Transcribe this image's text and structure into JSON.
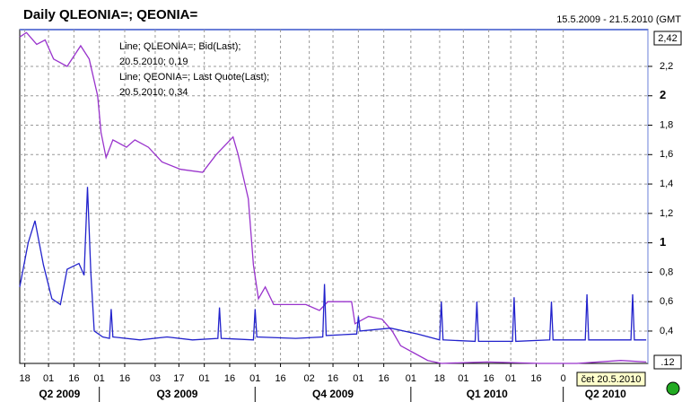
{
  "chart_data": {
    "type": "line",
    "title": "Daily QLEONIA=; QEONIA=",
    "date_range": "15.5.2009 - 21.5.2010 (GMT",
    "cursor_label": "čet 20.5.2010",
    "range_labels": [
      "2,42",
      ".12"
    ],
    "xlim": [
      "2009-05-15",
      "2010-05-21"
    ],
    "ylim": [
      0.18,
      2.45
    ],
    "grid": true,
    "yticks": [
      {
        "value": 0.4,
        "label": "0,4"
      },
      {
        "value": 0.6,
        "label": "0,6"
      },
      {
        "value": 0.8,
        "label": "0,8"
      },
      1,
      {
        "value": 1.2,
        "label": "1,2"
      },
      {
        "value": 1.4,
        "label": "1,4"
      },
      {
        "value": 1.6,
        "label": "1,6"
      },
      {
        "value": 1.8,
        "label": "1,8"
      },
      2,
      {
        "value": 2.2,
        "label": "2,2"
      }
    ],
    "xticks": [
      {
        "value": "2009-05-18",
        "label": "18"
      },
      {
        "value": "2009-06-01",
        "label": "01"
      },
      {
        "value": "2009-06-16",
        "label": "16"
      },
      {
        "value": "2009-07-01",
        "label": "01"
      },
      {
        "value": "2009-07-16",
        "label": "16"
      },
      {
        "value": "2009-08-03",
        "label": "03"
      },
      {
        "value": "2009-08-17",
        "label": "17"
      },
      {
        "value": "2009-09-01",
        "label": "01"
      },
      {
        "value": "2009-09-16",
        "label": "16"
      },
      {
        "value": "2009-10-01",
        "label": "01"
      },
      {
        "value": "2009-10-16",
        "label": "16"
      },
      {
        "value": "2009-11-02",
        "label": "02"
      },
      {
        "value": "2009-11-16",
        "label": "16"
      },
      {
        "value": "2009-12-01",
        "label": "01"
      },
      {
        "value": "2009-12-16",
        "label": "16"
      },
      {
        "value": "2010-01-01",
        "label": "01"
      },
      {
        "value": "2010-01-18",
        "label": "18"
      },
      {
        "value": "2010-02-01",
        "label": "01"
      },
      {
        "value": "2010-02-16",
        "label": "16"
      },
      {
        "value": "2010-03-01",
        "label": "01"
      },
      {
        "value": "2010-03-16",
        "label": "16"
      },
      {
        "value": "2010-04-01",
        "label": "0"
      }
    ],
    "quarters": [
      {
        "start": "2009-04-01",
        "label": "Q2 2009"
      },
      {
        "start": "2009-07-01",
        "label": "Q3 2009"
      },
      {
        "start": "2009-10-01",
        "label": "Q4 2009"
      },
      {
        "start": "2010-01-01",
        "label": "Q1 2010"
      },
      {
        "start": "2010-04-01",
        "label": "Q2 2010"
      }
    ],
    "series": [
      {
        "name": "QLEONIA=",
        "legend": "Line; QLEONIA=; Bid(Last);",
        "last": "20.5.2010; 0,19",
        "color": "#9933cc",
        "x": [
          "2009-05-15",
          "2009-05-19",
          "2009-05-25",
          "2009-05-30",
          "2009-06-04",
          "2009-06-12",
          "2009-06-20",
          "2009-06-25",
          "2009-06-30",
          "2009-07-02",
          "2009-07-05",
          "2009-07-09",
          "2009-07-17",
          "2009-07-22",
          "2009-07-30",
          "2009-08-07",
          "2009-08-18",
          "2009-08-31",
          "2009-09-08",
          "2009-09-18",
          "2009-09-21",
          "2009-09-27",
          "2009-09-30",
          "2009-10-03",
          "2009-10-07",
          "2009-10-12",
          "2009-10-31",
          "2009-11-08",
          "2009-11-13",
          "2009-11-27",
          "2009-11-29",
          "2009-12-07",
          "2009-12-15",
          "2009-12-21",
          "2009-12-26",
          "2010-01-03",
          "2010-01-11",
          "2010-01-19",
          "2010-02-15",
          "2010-03-18",
          "2010-04-09",
          "2010-05-05",
          "2010-05-20"
        ],
        "values": [
          2.4,
          2.43,
          2.35,
          2.38,
          2.25,
          2.2,
          2.34,
          2.25,
          2.0,
          1.75,
          1.58,
          1.7,
          1.65,
          1.7,
          1.65,
          1.55,
          1.5,
          1.48,
          1.6,
          1.72,
          1.6,
          1.3,
          0.85,
          0.62,
          0.7,
          0.58,
          0.58,
          0.54,
          0.6,
          0.6,
          0.45,
          0.5,
          0.48,
          0.4,
          0.3,
          0.25,
          0.2,
          0.18,
          0.19,
          0.18,
          0.18,
          0.2,
          0.19
        ]
      },
      {
        "name": "QEONIA=",
        "legend": "Line; QEONIA=; Last Quote(Last);",
        "last": "20.5.2010; 0,34",
        "color": "#2222cc",
        "x": [
          "2009-05-15",
          "2009-05-20",
          "2009-05-24",
          "2009-05-29",
          "2009-06-03",
          "2009-06-08",
          "2009-06-12",
          "2009-06-19",
          "2009-06-22",
          "2009-06-24",
          "2009-06-26",
          "2009-06-28",
          "2009-07-03",
          "2009-07-07",
          "2009-07-08",
          "2009-07-09",
          "2009-07-25",
          "2009-08-10",
          "2009-08-25",
          "2009-09-09",
          "2009-09-10",
          "2009-09-11",
          "2009-09-30",
          "2009-10-01",
          "2009-10-02",
          "2009-10-25",
          "2009-11-10",
          "2009-11-11",
          "2009-11-12",
          "2009-11-30",
          "2009-12-01",
          "2009-12-02",
          "2009-12-20",
          "2010-01-05",
          "2010-01-18",
          "2010-01-19",
          "2010-01-20",
          "2010-02-08",
          "2010-02-09",
          "2010-02-10",
          "2010-03-02",
          "2010-03-03",
          "2010-03-04",
          "2010-03-24",
          "2010-03-25",
          "2010-03-26",
          "2010-04-14",
          "2010-04-15",
          "2010-04-16",
          "2010-05-11",
          "2010-05-12",
          "2010-05-13",
          "2010-05-20"
        ],
        "values": [
          0.7,
          1.0,
          1.15,
          0.85,
          0.62,
          0.58,
          0.82,
          0.86,
          0.78,
          1.38,
          0.8,
          0.4,
          0.36,
          0.35,
          0.55,
          0.36,
          0.34,
          0.36,
          0.34,
          0.35,
          0.56,
          0.35,
          0.34,
          0.55,
          0.36,
          0.35,
          0.36,
          0.72,
          0.37,
          0.38,
          0.5,
          0.4,
          0.42,
          0.38,
          0.34,
          0.6,
          0.34,
          0.33,
          0.6,
          0.33,
          0.33,
          0.63,
          0.33,
          0.34,
          0.6,
          0.34,
          0.34,
          0.65,
          0.34,
          0.34,
          0.65,
          0.34,
          0.34
        ]
      }
    ]
  }
}
